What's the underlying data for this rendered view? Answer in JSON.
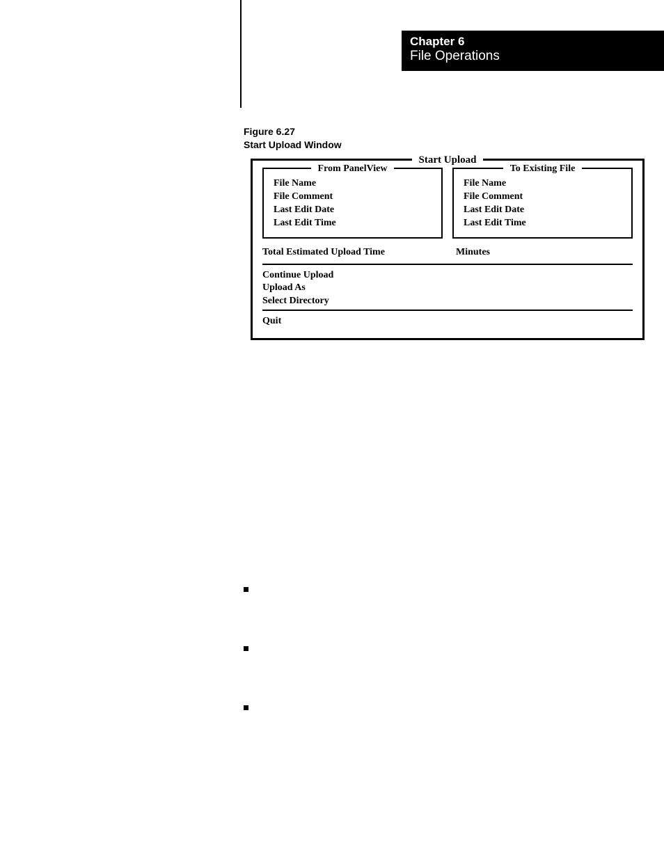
{
  "page": {
    "background_color": "#ffffff"
  },
  "header": {
    "chapter": "Chapter 6",
    "subtitle": "File Operations",
    "bg_color": "#000000",
    "text_color": "#ffffff"
  },
  "figure": {
    "label": "Figure 6.27",
    "title": "Start Upload Window"
  },
  "dialog": {
    "title": "Start Upload",
    "border_color": "#000000",
    "left_panel": {
      "title": "From PanelView",
      "lines": {
        "l0": "File Name",
        "l1": "File Comment",
        "l2": "Last Edit Date",
        "l3": "Last Edit Time"
      }
    },
    "right_panel": {
      "title": "To Existing File",
      "lines": {
        "l0": "File Name",
        "l1": "File Comment",
        "l2": "Last Edit Date",
        "l3": "Last Edit Time"
      }
    },
    "upload_time": {
      "label": "Total Estimated Upload Time",
      "unit": "Minutes"
    },
    "menu": {
      "m0": "Continue Upload",
      "m1": "Upload As",
      "m2": "Select Directory",
      "m3": "Quit"
    }
  }
}
